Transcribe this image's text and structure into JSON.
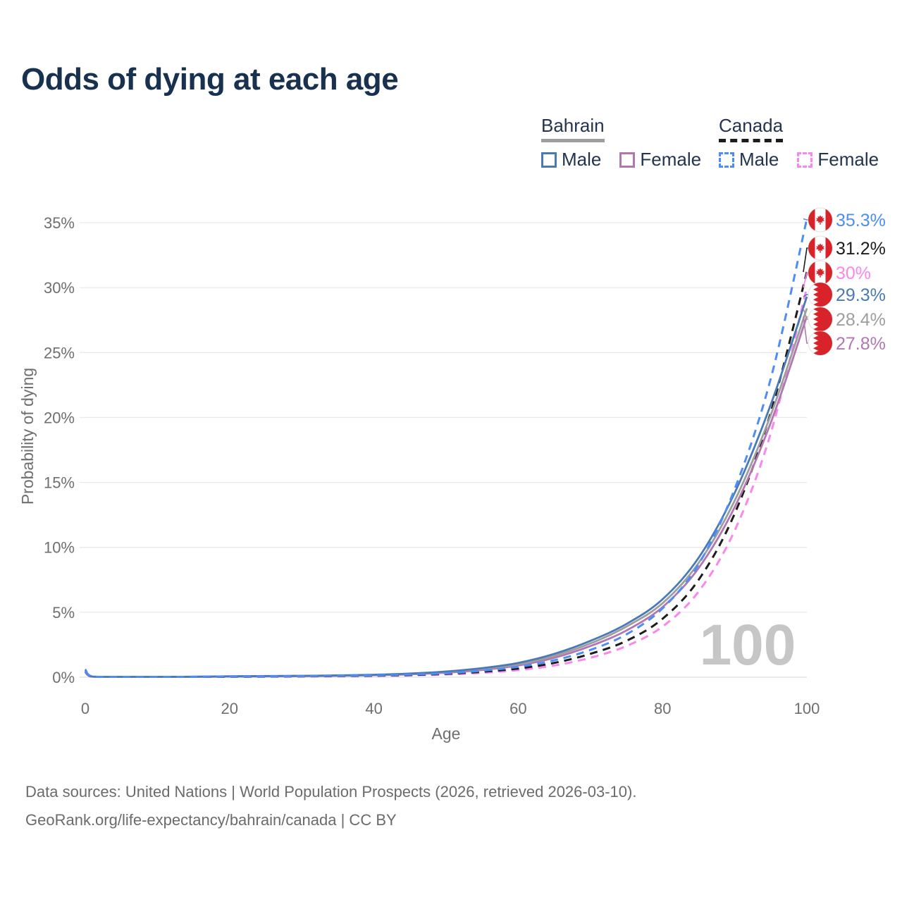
{
  "page": {
    "title": "Odds of dying at each age",
    "watermark": "100",
    "source_line1": "Data sources: United Nations | World Population Prospects (2026, retrieved 2026-03-10).",
    "source_line2": "GeoRank.org/life-expectancy/bahrain/canada | CC BY"
  },
  "legend": {
    "groups": [
      {
        "label": "Bahrain",
        "line_style": "solid",
        "underline_color": "#9e9e9e",
        "items": [
          {
            "label": "Male",
            "color": "#4a7ab5",
            "dashed": false
          },
          {
            "label": "Female",
            "color": "#b277af",
            "dashed": false
          }
        ]
      },
      {
        "label": "Canada",
        "line_style": "dashed",
        "underline_color": "#1c1c1c",
        "items": [
          {
            "label": "Male",
            "color": "#4d8df5",
            "dashed": true
          },
          {
            "label": "Female",
            "color": "#fb86f0",
            "dashed": true
          }
        ]
      }
    ]
  },
  "chart_data": {
    "type": "line",
    "title": "Odds of dying at each age",
    "xlabel": "Age",
    "ylabel": "Probability of dying",
    "xlim": [
      0,
      100
    ],
    "ylim": [
      0,
      35
    ],
    "xticks": [
      0,
      20,
      40,
      60,
      80,
      100
    ],
    "yticks": [
      0,
      5,
      10,
      15,
      20,
      25,
      30,
      35
    ],
    "grid": "horizontal",
    "legend_position": "top-right",
    "ages": [
      0,
      1,
      5,
      10,
      15,
      20,
      25,
      30,
      35,
      40,
      45,
      50,
      55,
      60,
      65,
      70,
      75,
      80,
      85,
      90,
      95,
      100
    ],
    "series": [
      {
        "id": "canada-female",
        "country": "Canada",
        "sex": "Female",
        "color": "#fb86f0",
        "dashed": true,
        "flag": "canada",
        "end_label": "30%",
        "values": [
          0.4,
          0.03,
          0.01,
          0.01,
          0.02,
          0.03,
          0.04,
          0.05,
          0.07,
          0.1,
          0.14,
          0.21,
          0.34,
          0.55,
          0.9,
          1.5,
          2.4,
          3.9,
          6.6,
          11.3,
          18.8,
          30.0
        ]
      },
      {
        "id": "canada",
        "country": "Canada",
        "sex": "All",
        "color": "#1c1c1c",
        "dashed": true,
        "flag": "canada",
        "end_label": "31.2%",
        "values": [
          0.45,
          0.03,
          0.01,
          0.01,
          0.02,
          0.04,
          0.05,
          0.07,
          0.09,
          0.12,
          0.17,
          0.26,
          0.42,
          0.67,
          1.1,
          1.8,
          2.8,
          4.5,
          7.5,
          12.6,
          20.4,
          31.2
        ]
      },
      {
        "id": "bahrain-female",
        "country": "Bahrain",
        "sex": "Female",
        "color": "#b277af",
        "dashed": false,
        "flag": "bahrain",
        "end_label": "27.8%",
        "values": [
          0.5,
          0.04,
          0.02,
          0.02,
          0.03,
          0.05,
          0.06,
          0.08,
          0.11,
          0.15,
          0.22,
          0.35,
          0.56,
          0.9,
          1.5,
          2.4,
          3.6,
          5.4,
          8.4,
          13.1,
          19.6,
          27.8
        ]
      },
      {
        "id": "bahrain",
        "country": "Bahrain",
        "sex": "All",
        "color": "#9e9e9e",
        "dashed": false,
        "flag": "bahrain",
        "end_label": "28.4%",
        "values": [
          0.55,
          0.05,
          0.02,
          0.02,
          0.03,
          0.06,
          0.08,
          0.1,
          0.13,
          0.17,
          0.26,
          0.4,
          0.64,
          1.0,
          1.65,
          2.6,
          3.9,
          5.7,
          8.8,
          13.6,
          20.2,
          28.4
        ]
      },
      {
        "id": "bahrain-male",
        "country": "Bahrain",
        "sex": "Male",
        "color": "#4a7ab5",
        "dashed": false,
        "flag": "bahrain",
        "end_label": "29.3%",
        "values": [
          0.6,
          0.05,
          0.02,
          0.02,
          0.04,
          0.07,
          0.09,
          0.11,
          0.14,
          0.19,
          0.28,
          0.44,
          0.7,
          1.1,
          1.8,
          2.8,
          4.1,
          6.0,
          9.2,
          14.2,
          21.0,
          29.3
        ]
      },
      {
        "id": "canada-male",
        "country": "Canada",
        "sex": "Male",
        "color": "#4d8df5",
        "dashed": true,
        "flag": "canada",
        "end_label": "35.3%",
        "values": [
          0.5,
          0.03,
          0.01,
          0.01,
          0.03,
          0.06,
          0.07,
          0.09,
          0.11,
          0.14,
          0.2,
          0.3,
          0.5,
          0.8,
          1.3,
          2.1,
          3.3,
          5.3,
          8.7,
          14.5,
          23.0,
          35.3
        ]
      }
    ],
    "flag_red": "#d8232a"
  }
}
